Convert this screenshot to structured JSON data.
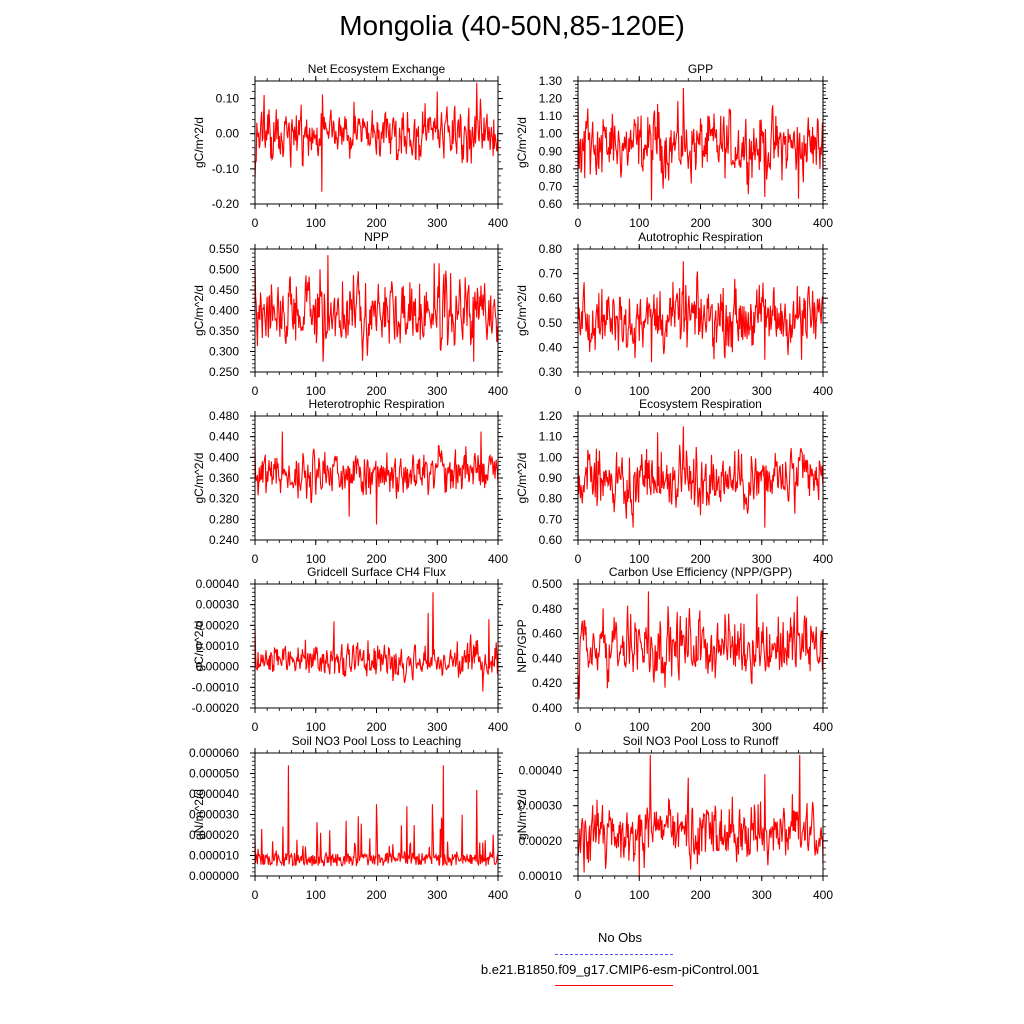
{
  "page": {
    "title": "Mongolia (40-50N,85-120E)"
  },
  "legend": {
    "entries": [
      {
        "label": "No Obs",
        "color": "#5050ff",
        "style": "dashed"
      },
      {
        "label": "b.e21.B1850.f09_g17.CMIP6-esm-piControl.001",
        "color": "#ff0000",
        "style": "solid"
      }
    ]
  },
  "chart_data": [
    {
      "type": "line",
      "title": "Net Ecosystem Exchange",
      "ylabel": "gC/m^2/d",
      "xlim": [
        0,
        400
      ],
      "ylim": [
        -0.2,
        0.15
      ],
      "yticks": [
        -0.2,
        -0.1,
        0.0,
        0.1
      ],
      "ytick_labels": [
        "-0.20",
        "-0.10",
        "0.00",
        "0.10"
      ],
      "xticks": [
        0,
        100,
        200,
        300,
        400
      ],
      "xtick_labels": [
        "0",
        "100",
        "200",
        "300",
        "400"
      ],
      "series": [
        {
          "color": "#ff0000",
          "seed": 11,
          "mean": 0.0,
          "amp": 0.042,
          "start": -0.13,
          "spikes": [
            [
              110,
              -0.165
            ],
            [
              365,
              0.145
            ],
            [
              15,
              0.11
            ],
            [
              300,
              0.12
            ]
          ],
          "n": 400
        }
      ]
    },
    {
      "type": "line",
      "title": "GPP",
      "ylabel": "gC/m^2/d",
      "xlim": [
        0,
        400
      ],
      "ylim": [
        0.6,
        1.3
      ],
      "yticks": [
        0.6,
        0.7,
        0.8,
        0.9,
        1.0,
        1.1,
        1.2,
        1.3
      ],
      "ytick_labels": [
        "0.60",
        "0.70",
        "0.80",
        "0.90",
        "1.00",
        "1.10",
        "1.20",
        "1.30"
      ],
      "xticks": [
        0,
        100,
        200,
        300,
        400
      ],
      "xtick_labels": [
        "0",
        "100",
        "200",
        "300",
        "400"
      ],
      "series": [
        {
          "color": "#ff0000",
          "seed": 23,
          "mean": 0.93,
          "amp": 0.1,
          "start": 1.2,
          "spikes": [
            [
              172,
              1.26
            ],
            [
              120,
              0.62
            ],
            [
              360,
              0.63
            ],
            [
              305,
              0.64
            ],
            [
              130,
              1.17
            ]
          ],
          "n": 400
        }
      ]
    },
    {
      "type": "line",
      "title": "NPP",
      "ylabel": "gC/m^2/d",
      "xlim": [
        0,
        400
      ],
      "ylim": [
        0.25,
        0.55
      ],
      "yticks": [
        0.25,
        0.3,
        0.35,
        0.4,
        0.45,
        0.5,
        0.55
      ],
      "ytick_labels": [
        "0.250",
        "0.300",
        "0.350",
        "0.400",
        "0.450",
        "0.500",
        "0.550"
      ],
      "xticks": [
        0,
        100,
        200,
        300,
        400
      ],
      "xtick_labels": [
        "0",
        "100",
        "200",
        "300",
        "400"
      ],
      "series": [
        {
          "color": "#ff0000",
          "seed": 37,
          "mean": 0.395,
          "amp": 0.045,
          "start": 0.52,
          "spikes": [
            [
              120,
              0.535
            ],
            [
              112,
              0.275
            ],
            [
              360,
              0.275
            ],
            [
              295,
              0.515
            ]
          ],
          "n": 400
        }
      ]
    },
    {
      "type": "line",
      "title": "Autotrophic Respiration",
      "ylabel": "gC/m^2/d",
      "xlim": [
        0,
        400
      ],
      "ylim": [
        0.3,
        0.8
      ],
      "yticks": [
        0.3,
        0.4,
        0.5,
        0.6,
        0.7,
        0.8
      ],
      "ytick_labels": [
        "0.30",
        "0.40",
        "0.50",
        "0.60",
        "0.70",
        "0.80"
      ],
      "xticks": [
        0,
        100,
        200,
        300,
        400
      ],
      "xtick_labels": [
        "0",
        "100",
        "200",
        "300",
        "400"
      ],
      "series": [
        {
          "color": "#ff0000",
          "seed": 41,
          "mean": 0.52,
          "amp": 0.07,
          "start": 0.66,
          "spikes": [
            [
              172,
              0.75
            ],
            [
              120,
              0.34
            ],
            [
              305,
              0.35
            ],
            [
              365,
              0.35
            ]
          ],
          "n": 400
        }
      ]
    },
    {
      "type": "line",
      "title": "Heterotrophic Respiration",
      "ylabel": "gC/m^2/d",
      "xlim": [
        0,
        400
      ],
      "ylim": [
        0.24,
        0.48
      ],
      "yticks": [
        0.24,
        0.28,
        0.32,
        0.36,
        0.4,
        0.44,
        0.48
      ],
      "ytick_labels": [
        "0.240",
        "0.280",
        "0.320",
        "0.360",
        "0.400",
        "0.440",
        "0.480"
      ],
      "xticks": [
        0,
        100,
        200,
        300,
        400
      ],
      "xtick_labels": [
        "0",
        "100",
        "200",
        "300",
        "400"
      ],
      "series": [
        {
          "color": "#ff0000",
          "seed": 53,
          "mean": 0.37,
          "amp": 0.025,
          "start": 0.42,
          "spikes": [
            [
              200,
              0.27
            ],
            [
              155,
              0.285
            ],
            [
              372,
              0.45
            ],
            [
              45,
              0.45
            ]
          ],
          "n": 400
        }
      ]
    },
    {
      "type": "line",
      "title": "Ecosystem Respiration",
      "ylabel": "gC/m^2/d",
      "xlim": [
        0,
        400
      ],
      "ylim": [
        0.6,
        1.2
      ],
      "yticks": [
        0.6,
        0.7,
        0.8,
        0.9,
        1.0,
        1.1,
        1.2
      ],
      "ytick_labels": [
        "0.60",
        "0.70",
        "0.80",
        "0.90",
        "1.00",
        "1.10",
        "1.20"
      ],
      "xticks": [
        0,
        100,
        200,
        300,
        400
      ],
      "xtick_labels": [
        "0",
        "100",
        "200",
        "300",
        "400"
      ],
      "series": [
        {
          "color": "#ff0000",
          "seed": 67,
          "mean": 0.89,
          "amp": 0.08,
          "start": 1.07,
          "spikes": [
            [
              172,
              1.15
            ],
            [
              305,
              0.66
            ],
            [
              90,
              0.66
            ],
            [
              130,
              1.12
            ]
          ],
          "n": 400
        }
      ]
    },
    {
      "type": "line",
      "title": "Gridcell Surface CH4 Flux",
      "ylabel": "gC/m^2/d",
      "xlim": [
        0,
        400
      ],
      "ylim": [
        -0.0002,
        0.0004
      ],
      "yticks": [
        -0.0002,
        -0.0001,
        0.0,
        0.0001,
        0.0002,
        0.0003,
        0.0004
      ],
      "ytick_labels": [
        "-0.00020",
        "-0.00010",
        "0.00000",
        "0.00010",
        "0.00020",
        "0.00030",
        "0.00040"
      ],
      "xticks": [
        0,
        100,
        200,
        300,
        400
      ],
      "xtick_labels": [
        "0",
        "100",
        "200",
        "300",
        "400"
      ],
      "series": [
        {
          "color": "#ff0000",
          "seed": 71,
          "mean": 3e-05,
          "amp": 4.5e-05,
          "start": 0.0002,
          "spikes": [
            [
              293,
              0.00036
            ],
            [
              285,
              0.00026
            ],
            [
              130,
              0.00022
            ],
            [
              385,
              0.00023
            ],
            [
              375,
              -0.00012
            ]
          ],
          "n": 400
        }
      ]
    },
    {
      "type": "line",
      "title": "Carbon Use Efficiency (NPP/GPP)",
      "ylabel": "NPP/GPP",
      "xlim": [
        0,
        400
      ],
      "ylim": [
        0.4,
        0.5
      ],
      "yticks": [
        0.4,
        0.42,
        0.44,
        0.46,
        0.48,
        0.5
      ],
      "ytick_labels": [
        "0.400",
        "0.420",
        "0.440",
        "0.460",
        "0.480",
        "0.500"
      ],
      "xticks": [
        0,
        100,
        200,
        300,
        400
      ],
      "xtick_labels": [
        "0",
        "100",
        "200",
        "300",
        "400"
      ],
      "series": [
        {
          "color": "#ff0000",
          "seed": 83,
          "mean": 0.45,
          "amp": 0.014,
          "start": 0.41,
          "spikes": [
            [
              2,
              0.407
            ],
            [
              115,
              0.494
            ],
            [
              292,
              0.492
            ],
            [
              358,
              0.49
            ]
          ],
          "n": 400
        }
      ]
    },
    {
      "type": "line",
      "title": "Soil NO3 Pool Loss to Leaching",
      "ylabel": "gN/m^2/d",
      "xlim": [
        0,
        400
      ],
      "ylim": [
        0.0,
        6e-05
      ],
      "yticks": [
        0.0,
        1e-05,
        2e-05,
        3e-05,
        4e-05,
        5e-05,
        6e-05
      ],
      "ytick_labels": [
        "0.000000",
        "0.000010",
        "0.000020",
        "0.000030",
        "0.000040",
        "0.000050",
        "0.000060"
      ],
      "xticks": [
        0,
        100,
        200,
        300,
        400
      ],
      "xtick_labels": [
        "0",
        "100",
        "200",
        "300",
        "400"
      ],
      "series": [
        {
          "color": "#ff0000",
          "seed": 97,
          "mean": 8e-06,
          "amp": 4e-06,
          "start": 2e-05,
          "spiky": true,
          "spikes": [
            [
              55,
              5.4e-05
            ],
            [
              310,
              5.4e-05
            ],
            [
              365,
              4.2e-05
            ],
            [
              292,
              3.5e-05
            ],
            [
              200,
              3.5e-05
            ],
            [
              250,
              3.4e-05
            ]
          ],
          "n": 400
        }
      ]
    },
    {
      "type": "line",
      "title": "Soil NO3 Pool Loss to Runoff",
      "ylabel": "gN/m^2/d",
      "xlim": [
        0,
        400
      ],
      "ylim": [
        0.0001,
        0.00045
      ],
      "yticks": [
        0.0001,
        0.0002,
        0.0003,
        0.0004
      ],
      "ytick_labels": [
        "0.00010",
        "0.00020",
        "0.00030",
        "0.00040"
      ],
      "xticks": [
        0,
        100,
        200,
        300,
        400
      ],
      "xtick_labels": [
        "0",
        "100",
        "200",
        "300",
        "400"
      ],
      "series": [
        {
          "color": "#ff0000",
          "seed": 101,
          "mean": 0.00022,
          "amp": 4.5e-05,
          "start": 0.00015,
          "spikes": [
            [
              118,
              0.000445
            ],
            [
              362,
              0.000445
            ],
            [
              305,
              0.00039
            ],
            [
              180,
              0.00038
            ],
            [
              100,
              0.0001
            ],
            [
              10,
              0.00011
            ]
          ],
          "n": 400
        }
      ]
    }
  ]
}
